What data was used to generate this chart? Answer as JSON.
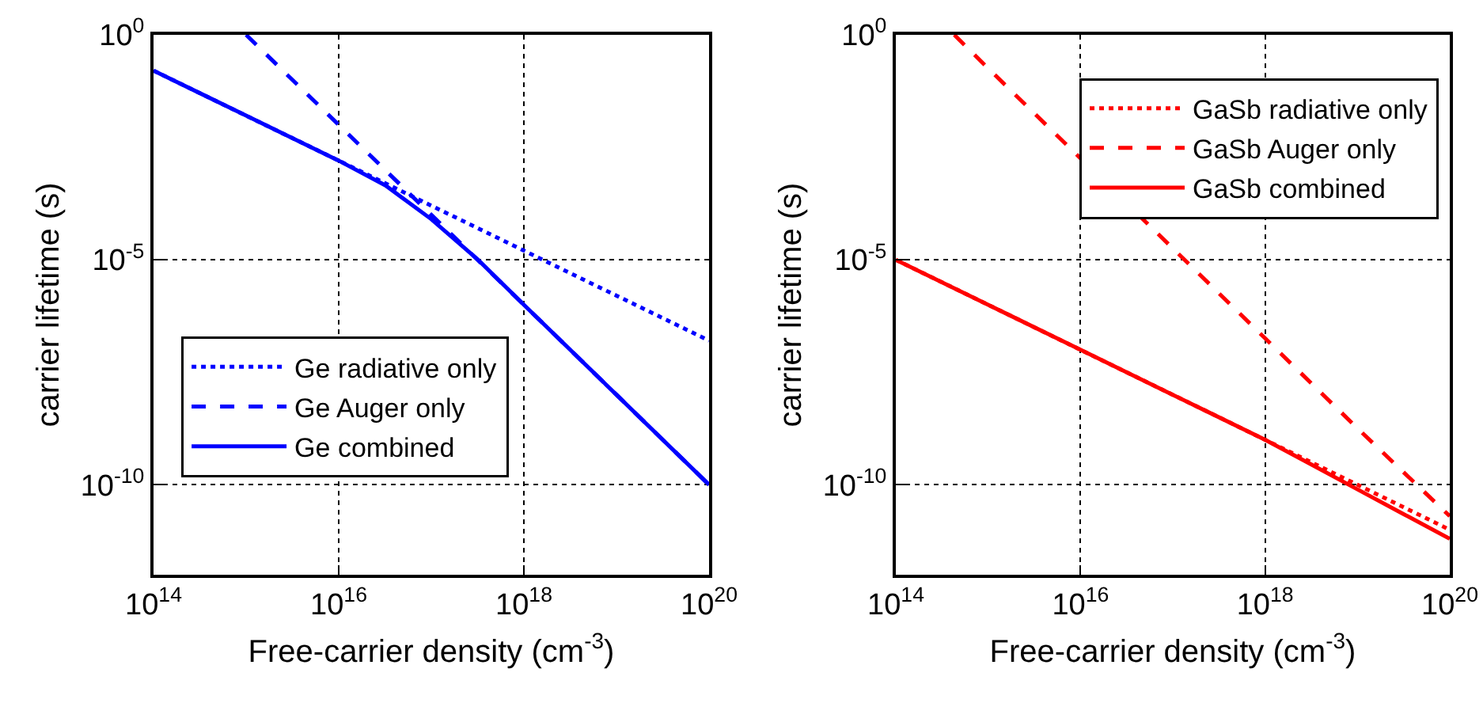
{
  "chart_data": [
    {
      "type": "line",
      "xlabel": "Free-carrier density (cm$^{-3}$)",
      "ylabel": "carrier lifetime (s)",
      "log": "xy",
      "grid": true,
      "legend": "bottom left",
      "marker": "none",
      "xlim": [
        100000000000000.0,
        1e+20
      ],
      "xticks": [
        {
          "value": 100000000000000.0,
          "label": "10$^{14}$"
        },
        {
          "value": 1e+16,
          "label": "10$^{16}$"
        },
        {
          "value": 1e+18,
          "label": "10$^{18}$"
        },
        {
          "value": 1e+20,
          "label": "10$^{20}$"
        }
      ],
      "ylim": [
        1e-12,
        1
      ],
      "yticks": [
        {
          "value": 1e-10,
          "label": "10$^{-10}$"
        },
        {
          "value": 1e-05,
          "label": "10$^{-5}$"
        },
        {
          "value": 1,
          "label": "10$^{0}$"
        }
      ],
      "series": [
        {
          "name": "Ge radiative only",
          "color": "#0000ff",
          "line_style": "dotted",
          "x": [
            100000000000000.0,
            1000000000000000.0,
            1e+16,
            1e+17,
            1e+18,
            1e+19,
            1e+20
          ],
          "values": [
            0.16,
            0.016,
            0.0016,
            0.00016,
            1.6e-05,
            1.6e-06,
            1.6e-07
          ]
        },
        {
          "name": "Ge Auger only",
          "color": "#0000ff",
          "line_style": "dashed",
          "x": [
            1000000000000000.0,
            1e+16,
            1e+17,
            1e+18,
            1e+19,
            1e+20
          ],
          "values": [
            1,
            0.01,
            0.0001,
            1e-06,
            1e-08,
            1e-10
          ]
        },
        {
          "name": "Ge combined",
          "color": "#0000ff",
          "line_style": "solid",
          "x": [
            100000000000000.0,
            1000000000000000.0,
            1e+16,
            3.2e+16,
            1e+17,
            3.2e+17,
            1e+18,
            1e+19,
            1e+20
          ],
          "values": [
            0.16,
            0.016,
            0.0016,
            0.00045,
            8e-05,
            1e-05,
            1e-06,
            1e-08,
            1e-10
          ]
        }
      ]
    },
    {
      "type": "line",
      "xlabel": "Free-carrier density (cm$^{-3}$)",
      "ylabel": "carrier lifetime (s)",
      "log": "xy",
      "grid": true,
      "legend": "top right",
      "marker": "none",
      "xlim": [
        100000000000000.0,
        1e+20
      ],
      "xticks": [
        {
          "value": 100000000000000.0,
          "label": "10$^{14}$"
        },
        {
          "value": 1e+16,
          "label": "10$^{16}$"
        },
        {
          "value": 1e+18,
          "label": "10$^{18}$"
        },
        {
          "value": 1e+20,
          "label": "10$^{20}$"
        }
      ],
      "ylim": [
        1e-12,
        1
      ],
      "yticks": [
        {
          "value": 1e-10,
          "label": "10$^{-10}$"
        },
        {
          "value": 1e-05,
          "label": "10$^{-5}$"
        },
        {
          "value": 1,
          "label": "10$^{0}$"
        }
      ],
      "series": [
        {
          "name": "GaSb radiative only",
          "color": "#ff0000",
          "line_style": "dotted",
          "x": [
            100000000000000.0,
            1000000000000000.0,
            1e+16,
            1e+17,
            1e+18,
            1e+19,
            1e+20
          ],
          "values": [
            1e-05,
            1e-06,
            1e-07,
            1e-08,
            1e-09,
            1e-10,
            1e-11
          ]
        },
        {
          "name": "GaSb Auger only",
          "color": "#ff0000",
          "line_style": "dashed",
          "x": [
            430000000000000.0,
            1000000000000000.0,
            1e+16,
            1e+17,
            1e+18,
            1e+19,
            1e+20
          ],
          "values": [
            1,
            0.18,
            0.0018,
            1.8e-05,
            1.8e-07,
            1.8e-09,
            2e-11
          ]
        },
        {
          "name": "GaSb combined",
          "color": "#ff0000",
          "line_style": "solid",
          "x": [
            100000000000000.0,
            1000000000000000.0,
            1e+16,
            1e+17,
            1e+18,
            3.2e+18,
            1e+19,
            3.2e+19,
            1e+20
          ],
          "values": [
            1e-05,
            1e-06,
            1e-07,
            1e-08,
            1e-09,
            2.8e-10,
            7.9e-11,
            2.2e-11,
            6.3e-12
          ]
        }
      ]
    }
  ]
}
